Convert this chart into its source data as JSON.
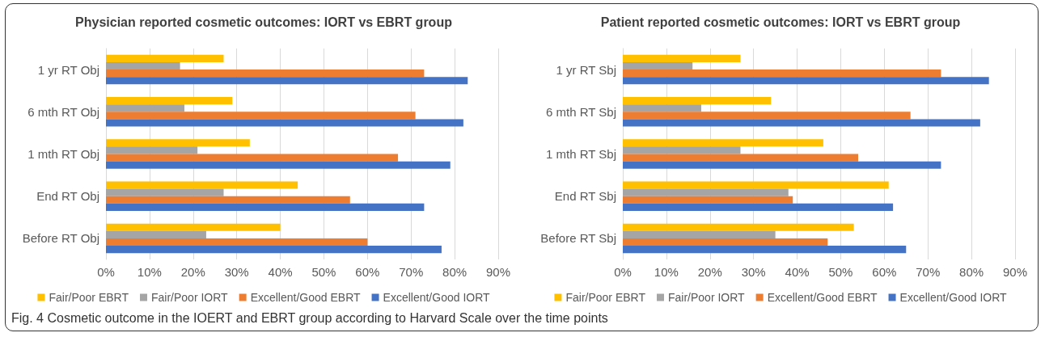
{
  "chart_data": [
    {
      "type": "bar",
      "orientation": "horizontal",
      "title": "Physician reported cosmetic outcomes: IORT vs EBRT group",
      "categories": [
        "1 yr RT Obj",
        "6 mth RT Obj",
        "1 mth RT Obj",
        "End RT Obj",
        "Before RT Obj"
      ],
      "series": [
        {
          "name": "Fair/Poor EBRT",
          "color": "#ffc000",
          "values": [
            27,
            29,
            33,
            44,
            40
          ]
        },
        {
          "name": "Fair/Poor IORT",
          "color": "#a5a5a5",
          "values": [
            17,
            18,
            21,
            27,
            23
          ]
        },
        {
          "name": "Excellent/Good EBRT",
          "color": "#ed7d31",
          "values": [
            73,
            71,
            67,
            56,
            60
          ]
        },
        {
          "name": "Excellent/Good IORT",
          "color": "#4472c4",
          "values": [
            83,
            82,
            79,
            73,
            77
          ]
        }
      ],
      "xlim": [
        0,
        90
      ],
      "xticks": [
        {
          "value": 0,
          "label": "0%"
        },
        {
          "value": 10,
          "label": "10%"
        },
        {
          "value": 20,
          "label": "20%"
        },
        {
          "value": 30,
          "label": "30%"
        },
        {
          "value": 40,
          "label": "40%"
        },
        {
          "value": 50,
          "label": "50%"
        },
        {
          "value": 60,
          "label": "60%"
        },
        {
          "value": 70,
          "label": "70%"
        },
        {
          "value": 80,
          "label": "80%"
        },
        {
          "value": 90,
          "label": "90%"
        }
      ],
      "grid": "x",
      "legend": "bottom"
    },
    {
      "type": "bar",
      "orientation": "horizontal",
      "title": "Patient reported cosmetic outcomes: IORT vs EBRT group",
      "categories": [
        "1 yr RT Sbj",
        "6 mth RT Sbj",
        "1 mth RT Sbj",
        "End RT Sbj",
        "Before RT Sbj"
      ],
      "series": [
        {
          "name": "Fair/Poor EBRT",
          "color": "#ffc000",
          "values": [
            27,
            34,
            46,
            61,
            53
          ]
        },
        {
          "name": "Fair/Poor IORT",
          "color": "#a5a5a5",
          "values": [
            16,
            18,
            27,
            38,
            35
          ]
        },
        {
          "name": "Excellent/Good EBRT",
          "color": "#ed7d31",
          "values": [
            73,
            66,
            54,
            39,
            47
          ]
        },
        {
          "name": "Excellent/Good IORT",
          "color": "#4472c4",
          "values": [
            84,
            82,
            73,
            62,
            65
          ]
        }
      ],
      "xlim": [
        0,
        90
      ],
      "xticks": [
        {
          "value": 0,
          "label": "0%"
        },
        {
          "value": 10,
          "label": "10%"
        },
        {
          "value": 20,
          "label": "20%"
        },
        {
          "value": 30,
          "label": "30%"
        },
        {
          "value": 40,
          "label": "40%"
        },
        {
          "value": 50,
          "label": "50%"
        },
        {
          "value": 60,
          "label": "60%"
        },
        {
          "value": 70,
          "label": "70%"
        },
        {
          "value": 80,
          "label": "80%"
        },
        {
          "value": 90,
          "label": "90%"
        }
      ],
      "grid": "x",
      "legend": "bottom",
      "annotations": [
        "Fig. 4 Cosmetic outcome in the IOERT and EBRT group according to Harvard Scale over the time points"
      ]
    }
  ]
}
